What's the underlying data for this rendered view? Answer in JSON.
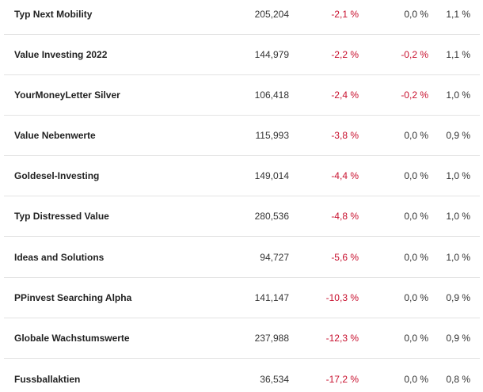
{
  "rows": [
    {
      "name": "Typ Next Mobility",
      "value": "205,204",
      "p1": "-2,1 %",
      "p2": "0,0 %",
      "p3": "1,1 %"
    },
    {
      "name": "Value Investing 2022",
      "value": "144,979",
      "p1": "-2,2 %",
      "p2": "-0,2 %",
      "p3": "1,1 %"
    },
    {
      "name": "YourMoneyLetter Silver",
      "value": "106,418",
      "p1": "-2,4 %",
      "p2": "-0,2 %",
      "p3": "1,0 %"
    },
    {
      "name": "Value Nebenwerte",
      "value": "115,993",
      "p1": "-3,8 %",
      "p2": "0,0 %",
      "p3": "0,9 %"
    },
    {
      "name": "Goldesel-Investing",
      "value": "149,014",
      "p1": "-4,4 %",
      "p2": "0,0 %",
      "p3": "1,0 %"
    },
    {
      "name": "Typ Distressed Value",
      "value": "280,536",
      "p1": "-4,8 %",
      "p2": "0,0 %",
      "p3": "1,0 %"
    },
    {
      "name": "Ideas and Solutions",
      "value": "94,727",
      "p1": "-5,6 %",
      "p2": "0,0 %",
      "p3": "1,0 %"
    },
    {
      "name": "PPinvest Searching Alpha",
      "value": "141,147",
      "p1": "-10,3 %",
      "p2": "0,0 %",
      "p3": "0,9 %"
    },
    {
      "name": "Globale Wachstumswerte",
      "value": "237,988",
      "p1": "-12,3 %",
      "p2": "0,0 %",
      "p3": "0,9 %"
    },
    {
      "name": "Fussballaktien",
      "value": "36,534",
      "p1": "-17,2 %",
      "p2": "0,0 %",
      "p3": "0,8 %"
    }
  ],
  "colors": {
    "negative": "#c8102e",
    "neutral": "#333333",
    "divider": "#e3e3e3"
  }
}
